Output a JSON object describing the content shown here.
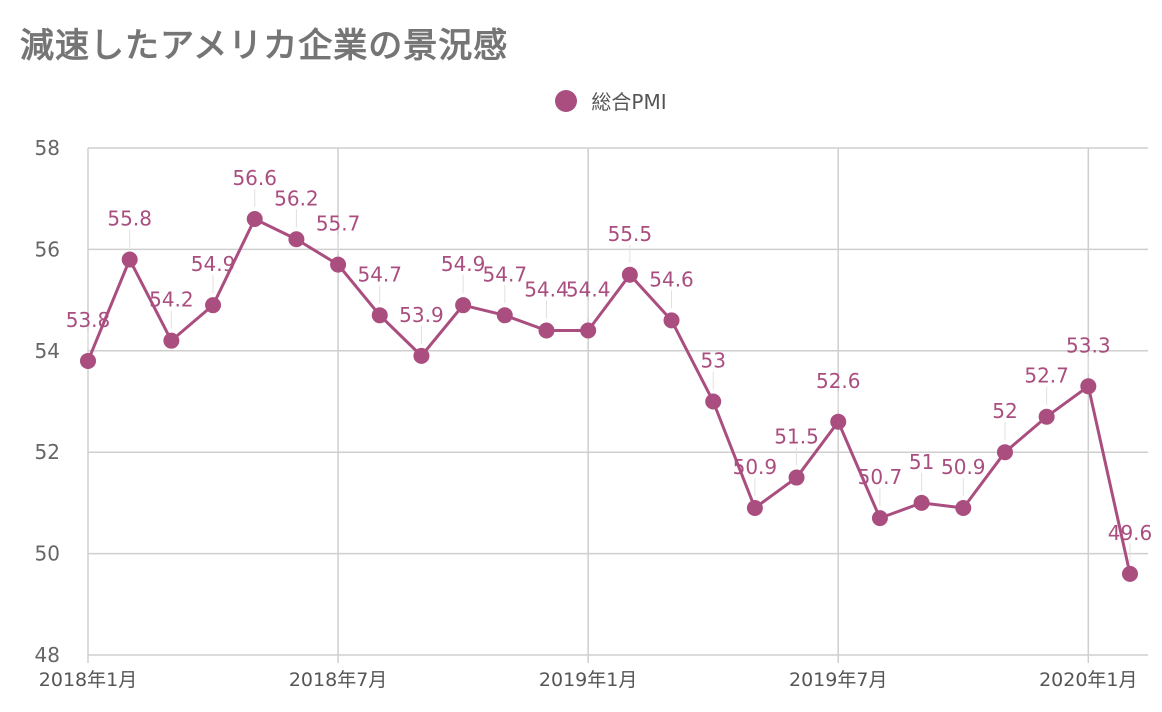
{
  "chart_data": {
    "type": "line",
    "title": "減速したアメリカ企業の景況感",
    "legend_position": "top-center",
    "grid": true,
    "ylim": [
      48,
      58
    ],
    "yticks": [
      "48",
      "50",
      "52",
      "54",
      "56",
      "58"
    ],
    "xtick_labels": [
      {
        "index": 0,
        "label": "2018年1月"
      },
      {
        "index": 6,
        "label": "2018年7月"
      },
      {
        "index": 12,
        "label": "2019年1月"
      },
      {
        "index": 18,
        "label": "2019年7月"
      },
      {
        "index": 24,
        "label": "2020年1月"
      }
    ],
    "x": [
      "2018-01",
      "2018-02",
      "2018-03",
      "2018-04",
      "2018-05",
      "2018-06",
      "2018-07",
      "2018-08",
      "2018-09",
      "2018-10",
      "2018-11",
      "2018-12",
      "2019-01",
      "2019-02",
      "2019-03",
      "2019-04",
      "2019-05",
      "2019-06",
      "2019-07",
      "2019-08",
      "2019-09",
      "2019-10",
      "2019-11",
      "2019-12",
      "2020-01",
      "2020-02"
    ],
    "series": [
      {
        "name": "総合PMI",
        "color": "#a94e7f",
        "values": [
          53.8,
          55.8,
          54.2,
          54.9,
          56.6,
          56.2,
          55.7,
          54.7,
          53.9,
          54.9,
          54.7,
          54.4,
          54.4,
          55.5,
          54.6,
          53,
          50.9,
          51.5,
          52.6,
          50.7,
          51,
          50.9,
          52,
          52.7,
          53.3,
          49.6
        ],
        "labels": [
          "53.8",
          "55.8",
          "54.2",
          "54.9",
          "56.6",
          "56.2",
          "55.7",
          "54.7",
          "53.9",
          "54.9",
          "54.7",
          "54.4",
          "54.4",
          "55.5",
          "54.6",
          "53",
          "50.9",
          "51.5",
          "52.6",
          "50.7",
          "51",
          "50.9",
          "52",
          "52.7",
          "53.3",
          "49.6"
        ]
      }
    ]
  }
}
